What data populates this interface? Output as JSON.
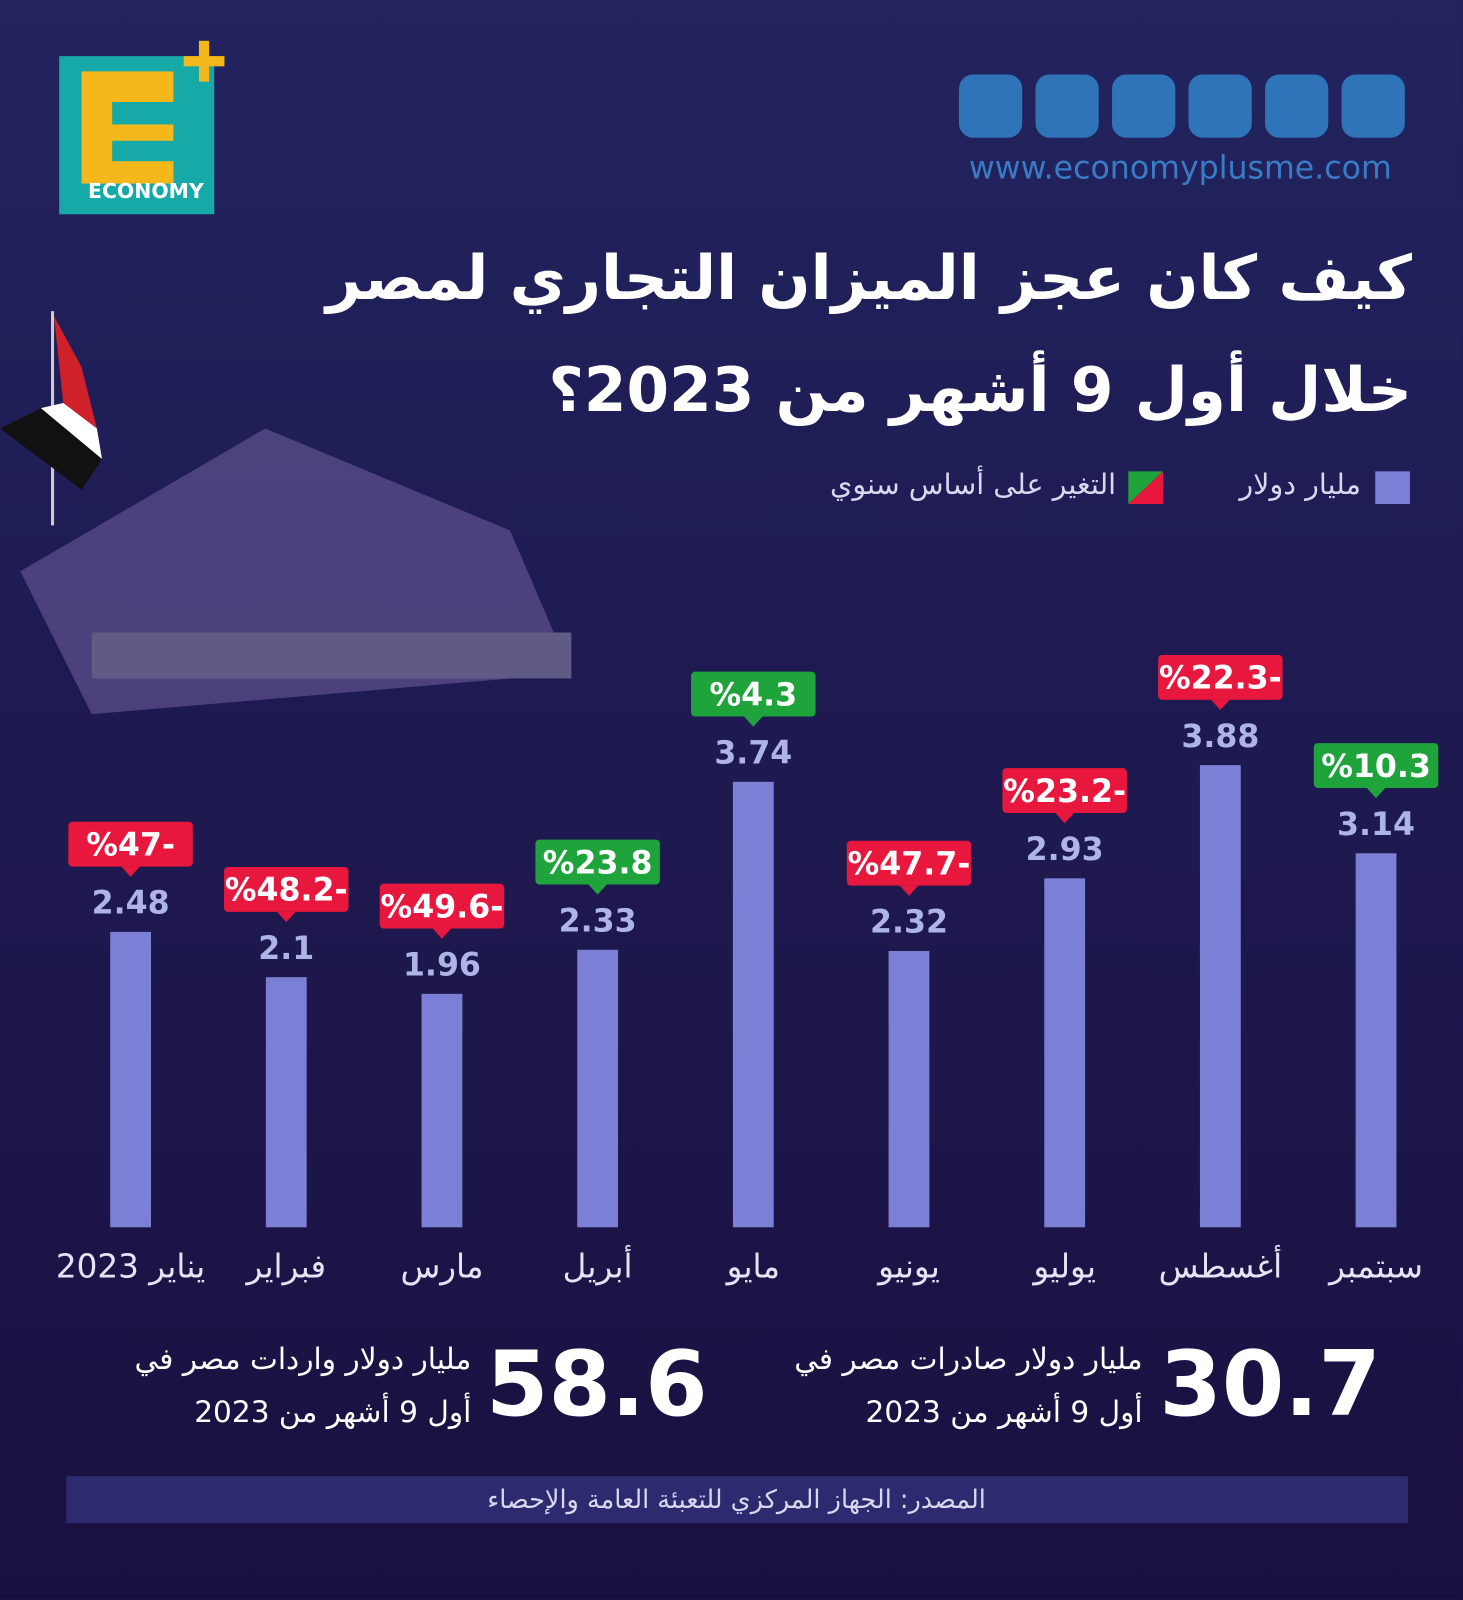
{
  "logo_text": "ECONOMY",
  "website": "www.economyplusme.com",
  "title_lines": [
    "كيف كان عجز الميزان التجاري لمصر",
    "خلال أول 9 أشهر من 2023؟"
  ],
  "chart_data": {
    "type": "bar",
    "categories": [
      "يناير 2023",
      "فبراير",
      "مارس",
      "أبريل",
      "مايو",
      "يونيو",
      "يوليو",
      "أغسطس",
      "سبتمبر"
    ],
    "series": [
      {
        "name": "مليار دولار",
        "color": "#7b80d6",
        "values": [
          2.48,
          2.1,
          1.96,
          2.33,
          3.74,
          2.32,
          2.93,
          3.88,
          3.14
        ]
      }
    ],
    "changes": {
      "name": "التغير على أساس سنوي",
      "values": [
        -47,
        -48.2,
        -49.6,
        23.8,
        4.3,
        -47.7,
        -23.2,
        -22.3,
        10.3
      ],
      "value_labels": [
        "%47-",
        "%48.2-",
        "%49.6-",
        "%23.8",
        "%4.3",
        "%47.7-",
        "%23.2-",
        "%22.3-",
        "%10.3"
      ],
      "positive_color": "#1fa33b",
      "negative_color": "#e8173d"
    }
  },
  "summary": [
    {
      "value": 58.6,
      "lines": [
        "مليار دولار واردات مصر في",
        "أول 9 أشهر من 2023"
      ]
    },
    {
      "value": 30.7,
      "lines": [
        "مليار دولار صادرات مصر في",
        "أول 9 أشهر من 2023"
      ]
    }
  ],
  "source": "المصدر: الجهاز المركزي للتعبئة العامة والإحصاء"
}
